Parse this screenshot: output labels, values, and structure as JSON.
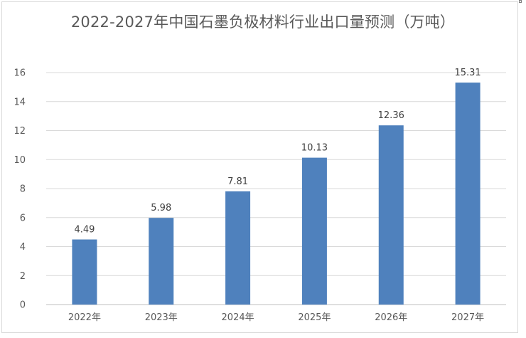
{
  "chart_data": {
    "type": "bar",
    "title": "2022-2027年中国石墨负极材料行业出口量预测（万吨）",
    "categories": [
      "2022年",
      "2023年",
      "2024年",
      "2025年",
      "2026年",
      "2027年"
    ],
    "values": [
      4.49,
      5.98,
      7.81,
      10.13,
      12.36,
      15.31
    ],
    "data_labels": [
      "4.49",
      "5.98",
      "7.81",
      "10.13",
      "12.36",
      "15.31"
    ],
    "y_ticks": [
      "0",
      "2",
      "4",
      "6",
      "8",
      "10",
      "12",
      "14",
      "16"
    ],
    "ylim": [
      0,
      16
    ],
    "xlabel": "",
    "ylabel": "",
    "grid": true,
    "legend": "none",
    "bar_color": "#4f81bd",
    "grid_color": "#d9d9d9"
  }
}
